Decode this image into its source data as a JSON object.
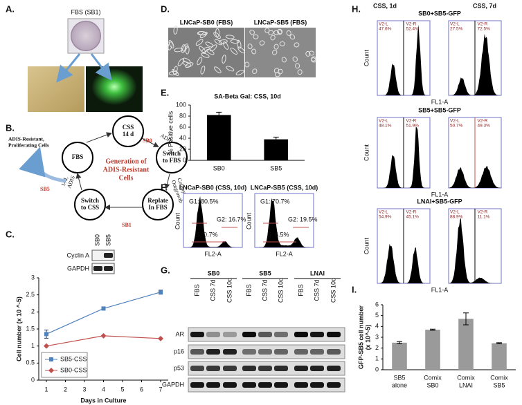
{
  "panel_labels": [
    "A.",
    "B.",
    "C.",
    "D.",
    "E.",
    "F.",
    "G.",
    "H.",
    "I."
  ],
  "panel_a": {
    "title": "FBS (SB1)"
  },
  "panel_b": {
    "center": [
      "Generation of",
      "ADIS-Resistant",
      "Cells"
    ],
    "nodes": [
      [
        "CSS",
        "14 d"
      ],
      [
        "Switch",
        "to FBS"
      ],
      [
        "Replate",
        "In FBS"
      ],
      [
        "Switch",
        "to CSS"
      ],
      [
        "FBS"
      ]
    ],
    "edges": {
      "sb0": "SB0",
      "adis": "ADIS",
      "colony": [
        "Colony",
        "Outgrowth"
      ],
      "sb1": "SB1",
      "adis14": [
        "14d,",
        "ADIS"
      ],
      "sb5": "SB5"
    },
    "side": [
      "ADIS-Resistant,",
      "Proliferating Cells"
    ]
  },
  "panel_c_inset": {
    "lanes": [
      "SB0",
      "SB5"
    ],
    "rows": [
      "Cyclin A",
      "GAPDH"
    ]
  },
  "panel_d": {
    "labels": [
      "LNCaP-SB0 (FBS)",
      "LNCaP-SB5 (FBS)"
    ]
  },
  "panel_f": {
    "plots": [
      {
        "title": "LNCaP-SB0 (CSS, 10d)",
        "g1": "G1: 80.5%",
        "g2": "G2: 16.7%",
        "s": "S: 0.7%",
        "ylabel": "Count",
        "xlabel": "FL2-A"
      },
      {
        "title": "LNCaP-SB5 (CSS, 10d)",
        "g1": "G1: 70.7%",
        "g2": "G2: 19.5%",
        "s": "S: 6.5%",
        "ylabel": "Count",
        "xlabel": "FL2-A"
      }
    ]
  },
  "panel_g": {
    "groups": [
      "SB0",
      "SB5",
      "LNAI"
    ],
    "lanes": [
      "FBS",
      "CSS 7d",
      "CSS 10d"
    ],
    "rows": [
      "AR",
      "p16",
      "p53",
      "GAPDH"
    ]
  },
  "panel_h": {
    "columns": [
      "CSS, 1d",
      "CSS, 7d"
    ],
    "ylabel": "Count",
    "xlabel": "FL1-A",
    "rows": [
      {
        "title": "SB0+SB5-GFP",
        "gates": [
          [
            [
              "V2-L",
              "47.6%"
            ],
            [
              "V2-R",
              "52.4%"
            ]
          ],
          [
            [
              "V2-L",
              "27.5%"
            ],
            [
              "V2-R",
              "72.5%"
            ]
          ]
        ]
      },
      {
        "title": "SB5+SB5-GFP",
        "gates": [
          [
            [
              "V2-L",
              "48.1%"
            ],
            [
              "V2-R",
              "51.9%"
            ]
          ],
          [
            [
              "V2-L",
              "50.7%"
            ],
            [
              "V2-R",
              "49.3%"
            ]
          ]
        ]
      },
      {
        "title": "LNAI+SB5-GFP",
        "gates": [
          [
            [
              "V2-L",
              "54.9%"
            ],
            [
              "V2-R",
              "45.1%"
            ]
          ],
          [
            [
              "V2-L",
              "88.9%"
            ],
            [
              "V2-R",
              "11.1%"
            ]
          ]
        ]
      }
    ]
  },
  "chart_data": [
    {
      "type": "line",
      "xlabel": "Days in Culture",
      "ylabel": "Cell number (x 10 ^-5)",
      "x": [
        1,
        4,
        7
      ],
      "xlim": [
        0.6,
        7.4
      ],
      "xticks": [
        1,
        2,
        3,
        4,
        5,
        6,
        7
      ],
      "ylim": [
        0,
        3
      ],
      "yticks": [
        0,
        0.5,
        1,
        1.5,
        2,
        2.5,
        3
      ],
      "legend": "lower-left",
      "series": [
        {
          "name": "SB5-CSS",
          "color": "#4f81bd",
          "marker": "square",
          "values": [
            1.35,
            2.1,
            2.58
          ],
          "errors": [
            0.12,
            0.04,
            0.06
          ]
        },
        {
          "name": "SB0-CSS",
          "color": "#c0504d",
          "marker": "diamond",
          "values": [
            1.0,
            1.3,
            1.22
          ]
        }
      ]
    },
    {
      "type": "bar",
      "title": "SA-Beta Gal: CSS, 10d",
      "ylabel": "% Positive cells",
      "categories": [
        [
          "SB0"
        ],
        [
          "SB5"
        ]
      ],
      "values": [
        82,
        38
      ],
      "errors": [
        5,
        4
      ],
      "color": "#000000",
      "ylim": [
        0,
        100
      ],
      "yticks": [
        0,
        20,
        40,
        60,
        80,
        100
      ]
    },
    {
      "type": "bar",
      "ylabel": [
        "GFP-SB5 cell number",
        "(x 10^-5)"
      ],
      "categories": [
        [
          "SB5",
          "alone"
        ],
        [
          "Comix",
          "SB0"
        ],
        [
          "Comix",
          "LNAI"
        ],
        [
          "Comix",
          "SB5"
        ]
      ],
      "values": [
        2.5,
        3.7,
        4.7,
        2.45
      ],
      "errors": [
        0.1,
        0.05,
        0.55,
        0.05
      ],
      "color": "#9a9a9a",
      "ylim": [
        0,
        6
      ],
      "yticks": [
        0,
        1,
        2,
        3,
        4,
        5,
        6
      ]
    }
  ]
}
